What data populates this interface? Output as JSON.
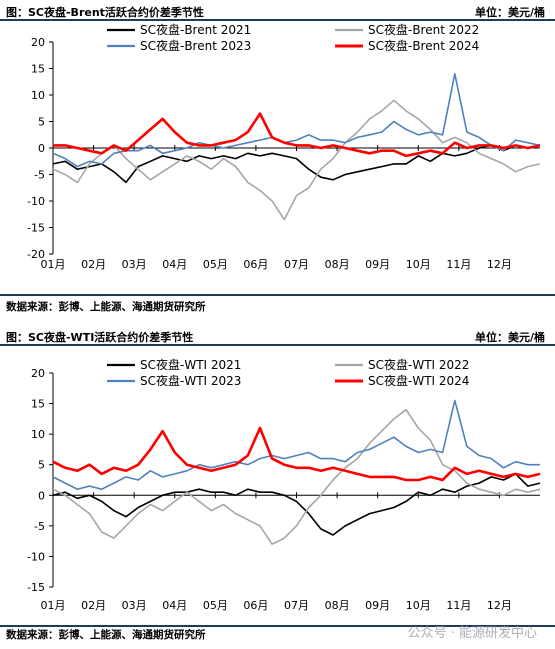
{
  "charts": [
    {
      "caption": "图：SC夜盘-Brent活跃合约价差季节性",
      "unit": "单位：美元/桶",
      "source": "数据来源：彭博、上能源、海通期货研究所"
    },
    {
      "caption": "图：SC夜盘-WTI活跃合约价差季节性",
      "unit": "单位：美元/桶",
      "source": "数据来源：彭博、上能源、海通期货研究所"
    }
  ],
  "watermark": "公众号 · 能源研发中心",
  "chart_data": [
    {
      "type": "line",
      "title": "",
      "xlabel": "",
      "ylabel": "",
      "ylim": [
        -20,
        20
      ],
      "yticks": [
        -20,
        -15,
        -10,
        -5,
        0,
        5,
        10,
        15,
        20
      ],
      "xlim": [
        0,
        12
      ],
      "x_tick_labels": [
        "01月",
        "02月",
        "03月",
        "04月",
        "05月",
        "06月",
        "07月",
        "08月",
        "09月",
        "10月",
        "11月",
        "12月"
      ],
      "legend_position": "top",
      "series": [
        {
          "name": "SC夜盘-Brent 2021",
          "color": "#000000",
          "x": [
            0.0,
            0.3,
            0.6,
            0.9,
            1.2,
            1.5,
            1.8,
            2.1,
            2.4,
            2.7,
            3.0,
            3.3,
            3.6,
            3.9,
            4.2,
            4.5,
            4.8,
            5.1,
            5.4,
            5.7,
            6.0,
            6.3,
            6.6,
            6.9,
            7.2,
            7.5,
            7.8,
            8.1,
            8.4,
            8.7,
            9.0,
            9.3,
            9.6,
            9.9,
            10.2,
            10.5,
            10.8,
            11.1,
            11.4,
            11.7,
            12.0
          ],
          "y": [
            -3.0,
            -2.5,
            -4.0,
            -3.5,
            -3.0,
            -4.5,
            -6.5,
            -3.5,
            -2.5,
            -1.5,
            -2.0,
            -2.5,
            -1.5,
            -2.0,
            -1.5,
            -2.0,
            -1.0,
            -1.5,
            -1.0,
            -1.5,
            -2.0,
            -4.0,
            -5.5,
            -6.0,
            -5.0,
            -4.5,
            -4.0,
            -3.5,
            -3.0,
            -3.0,
            -1.5,
            -2.5,
            -1.0,
            -1.5,
            -1.0,
            0.0,
            0.5,
            -0.5,
            0.5,
            0.0,
            0.5
          ]
        },
        {
          "name": "SC夜盘-Brent 2022",
          "color": "#a6a6a6",
          "x": [
            0.0,
            0.3,
            0.6,
            0.9,
            1.2,
            1.5,
            1.8,
            2.1,
            2.4,
            2.7,
            3.0,
            3.3,
            3.6,
            3.9,
            4.2,
            4.5,
            4.8,
            5.1,
            5.4,
            5.7,
            6.0,
            6.3,
            6.6,
            6.9,
            7.2,
            7.5,
            7.8,
            8.1,
            8.4,
            8.7,
            9.0,
            9.3,
            9.6,
            9.9,
            10.2,
            10.5,
            10.8,
            11.1,
            11.4,
            11.7,
            12.0
          ],
          "y": [
            -4.0,
            -5.0,
            -6.5,
            -3.0,
            -1.0,
            0.5,
            -2.0,
            -4.0,
            -6.0,
            -4.5,
            -3.0,
            -1.5,
            -2.5,
            -4.0,
            -2.0,
            -3.5,
            -6.5,
            -8.0,
            -10.0,
            -13.5,
            -9.0,
            -7.5,
            -4.0,
            -2.0,
            1.0,
            3.0,
            5.5,
            7.0,
            9.0,
            7.0,
            5.5,
            3.5,
            1.0,
            2.0,
            1.0,
            -1.0,
            -2.0,
            -3.0,
            -4.5,
            -3.5,
            -3.0
          ]
        },
        {
          "name": "SC夜盘-Brent 2023",
          "color": "#4f81bd",
          "x": [
            0.0,
            0.3,
            0.6,
            0.9,
            1.2,
            1.5,
            1.8,
            2.1,
            2.4,
            2.7,
            3.0,
            3.3,
            3.6,
            3.9,
            4.2,
            4.5,
            4.8,
            5.1,
            5.4,
            5.7,
            6.0,
            6.3,
            6.6,
            6.9,
            7.2,
            7.5,
            7.8,
            8.1,
            8.4,
            8.7,
            9.0,
            9.3,
            9.6,
            9.9,
            10.2,
            10.5,
            10.8,
            11.1,
            11.4,
            11.7,
            12.0
          ],
          "y": [
            -1.0,
            -2.0,
            -3.5,
            -2.5,
            -3.0,
            -1.0,
            -0.5,
            -0.5,
            0.5,
            -1.0,
            -0.5,
            0.0,
            1.0,
            0.5,
            0.0,
            0.5,
            1.0,
            1.5,
            2.0,
            1.0,
            1.5,
            2.5,
            1.5,
            1.5,
            1.0,
            2.0,
            2.5,
            3.0,
            5.0,
            3.5,
            2.5,
            3.0,
            2.5,
            14.0,
            3.0,
            2.0,
            0.5,
            -0.5,
            1.5,
            1.0,
            0.5
          ]
        },
        {
          "name": "SC夜盘-Brent 2024",
          "color": "#ff0000",
          "x": [
            0.0,
            0.3,
            0.6,
            0.9,
            1.2,
            1.5,
            1.8,
            2.1,
            2.4,
            2.7,
            3.0,
            3.3,
            3.6,
            3.9,
            4.2,
            4.5,
            4.8,
            5.1,
            5.4,
            5.7,
            6.0,
            6.3,
            6.6,
            6.9,
            7.2,
            7.5,
            7.8,
            8.1,
            8.4,
            8.7,
            9.0,
            9.3,
            9.6,
            9.9,
            10.2,
            10.5,
            10.8,
            11.1,
            11.4,
            11.7,
            12.0
          ],
          "y": [
            0.5,
            0.5,
            0.0,
            -0.5,
            -1.0,
            0.5,
            -0.5,
            1.5,
            3.5,
            5.5,
            3.0,
            1.0,
            0.5,
            0.5,
            1.0,
            1.5,
            3.0,
            6.5,
            2.0,
            1.0,
            0.5,
            0.5,
            0.0,
            0.5,
            0.0,
            -0.5,
            -1.0,
            -0.5,
            -0.5,
            -1.5,
            -1.0,
            -0.5,
            -1.0,
            1.0,
            0.0,
            0.5,
            0.5,
            0.0,
            0.5,
            0.0,
            0.5
          ]
        }
      ]
    },
    {
      "type": "line",
      "title": "",
      "xlabel": "",
      "ylabel": "",
      "ylim": [
        -15,
        20
      ],
      "yticks": [
        -15,
        -10,
        -5,
        0,
        5,
        10,
        15,
        20
      ],
      "xlim": [
        0,
        12
      ],
      "x_tick_labels": [
        "01月",
        "02月",
        "03月",
        "04月",
        "05月",
        "06月",
        "07月",
        "08月",
        "09月",
        "10月",
        "11月",
        "12月"
      ],
      "legend_position": "top",
      "series": [
        {
          "name": "SC夜盘-WTI 2021",
          "color": "#000000",
          "x": [
            0.0,
            0.3,
            0.6,
            0.9,
            1.2,
            1.5,
            1.8,
            2.1,
            2.4,
            2.7,
            3.0,
            3.3,
            3.6,
            3.9,
            4.2,
            4.5,
            4.8,
            5.1,
            5.4,
            5.7,
            6.0,
            6.3,
            6.6,
            6.9,
            7.2,
            7.5,
            7.8,
            8.1,
            8.4,
            8.7,
            9.0,
            9.3,
            9.6,
            9.9,
            10.2,
            10.5,
            10.8,
            11.1,
            11.4,
            11.7,
            12.0
          ],
          "y": [
            0.0,
            0.5,
            -0.5,
            0.0,
            -1.0,
            -2.5,
            -3.5,
            -2.0,
            -1.0,
            0.0,
            0.5,
            0.5,
            1.0,
            0.5,
            0.5,
            0.0,
            1.0,
            0.5,
            0.5,
            0.0,
            -1.0,
            -3.0,
            -5.5,
            -6.5,
            -5.0,
            -4.0,
            -3.0,
            -2.5,
            -2.0,
            -1.0,
            0.5,
            0.0,
            1.0,
            0.5,
            1.5,
            2.0,
            3.0,
            2.5,
            3.5,
            1.5,
            2.0
          ]
        },
        {
          "name": "SC夜盘-WTI 2022",
          "color": "#a6a6a6",
          "x": [
            0.0,
            0.3,
            0.6,
            0.9,
            1.2,
            1.5,
            1.8,
            2.1,
            2.4,
            2.7,
            3.0,
            3.3,
            3.6,
            3.9,
            4.2,
            4.5,
            4.8,
            5.1,
            5.4,
            5.7,
            6.0,
            6.3,
            6.6,
            6.9,
            7.2,
            7.5,
            7.8,
            8.1,
            8.4,
            8.7,
            9.0,
            9.3,
            9.6,
            9.9,
            10.2,
            10.5,
            10.8,
            11.1,
            11.4,
            11.7,
            12.0
          ],
          "y": [
            1.0,
            0.0,
            -1.5,
            -3.0,
            -6.0,
            -7.0,
            -5.0,
            -3.0,
            -1.5,
            -2.5,
            -1.0,
            0.5,
            -1.0,
            -2.5,
            -1.5,
            -3.0,
            -4.0,
            -5.0,
            -8.0,
            -7.0,
            -5.0,
            -2.0,
            0.0,
            2.5,
            4.5,
            6.0,
            8.5,
            10.5,
            12.5,
            14.0,
            11.0,
            9.0,
            5.0,
            4.0,
            2.0,
            1.0,
            0.5,
            0.0,
            1.0,
            0.5,
            1.0
          ]
        },
        {
          "name": "SC夜盘-WTI 2023",
          "color": "#4f81bd",
          "x": [
            0.0,
            0.3,
            0.6,
            0.9,
            1.2,
            1.5,
            1.8,
            2.1,
            2.4,
            2.7,
            3.0,
            3.3,
            3.6,
            3.9,
            4.2,
            4.5,
            4.8,
            5.1,
            5.4,
            5.7,
            6.0,
            6.3,
            6.6,
            6.9,
            7.2,
            7.5,
            7.8,
            8.1,
            8.4,
            8.7,
            9.0,
            9.3,
            9.6,
            9.9,
            10.2,
            10.5,
            10.8,
            11.1,
            11.4,
            11.7,
            12.0
          ],
          "y": [
            3.0,
            2.0,
            1.0,
            1.5,
            1.0,
            2.0,
            3.0,
            2.5,
            4.0,
            3.0,
            3.5,
            4.0,
            5.0,
            4.5,
            5.0,
            5.5,
            5.0,
            6.0,
            6.5,
            6.0,
            6.5,
            7.0,
            6.0,
            6.0,
            5.5,
            7.0,
            7.5,
            8.5,
            9.5,
            8.0,
            7.0,
            7.5,
            7.0,
            15.5,
            8.0,
            6.5,
            6.0,
            4.5,
            5.5,
            5.0,
            5.0
          ]
        },
        {
          "name": "SC夜盘-WTI 2024",
          "color": "#ff0000",
          "x": [
            0.0,
            0.3,
            0.6,
            0.9,
            1.2,
            1.5,
            1.8,
            2.1,
            2.4,
            2.7,
            3.0,
            3.3,
            3.6,
            3.9,
            4.2,
            4.5,
            4.8,
            5.1,
            5.4,
            5.7,
            6.0,
            6.3,
            6.6,
            6.9,
            7.2,
            7.5,
            7.8,
            8.1,
            8.4,
            8.7,
            9.0,
            9.3,
            9.6,
            9.9,
            10.2,
            10.5,
            10.8,
            11.1,
            11.4,
            11.7,
            12.0
          ],
          "y": [
            5.5,
            4.5,
            4.0,
            5.0,
            3.5,
            4.5,
            4.0,
            5.0,
            7.5,
            10.5,
            7.0,
            5.0,
            4.5,
            4.0,
            4.5,
            5.0,
            6.5,
            11.0,
            6.0,
            5.0,
            4.5,
            4.5,
            4.0,
            4.5,
            4.0,
            3.5,
            3.0,
            3.0,
            3.0,
            2.5,
            2.5,
            3.0,
            2.5,
            4.5,
            3.5,
            4.0,
            3.5,
            3.0,
            3.5,
            3.0,
            3.5
          ]
        }
      ]
    }
  ]
}
